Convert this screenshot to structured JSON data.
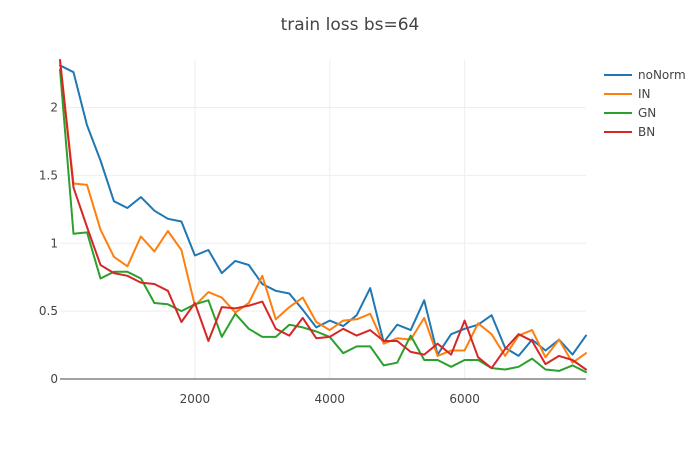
{
  "chart_data": {
    "type": "line",
    "title": "train loss bs=64",
    "xlabel": "",
    "ylabel": "",
    "xlim": [
      0,
      7800
    ],
    "ylim": [
      0,
      2.35
    ],
    "xticks": [
      2000,
      4000,
      6000
    ],
    "yticks": [
      0,
      0.5,
      1,
      1.5,
      2
    ],
    "xtick_labels": [
      "2000",
      "4000",
      "6000"
    ],
    "ytick_labels": [
      "0",
      "0.5",
      "1",
      "1.5",
      "2"
    ],
    "grid": true,
    "legend_position": "top-right",
    "x": [
      0,
      200,
      400,
      600,
      800,
      1000,
      1200,
      1400,
      1600,
      1800,
      2000,
      2200,
      2400,
      2600,
      2800,
      3000,
      3200,
      3400,
      3600,
      3800,
      4000,
      4200,
      4400,
      4600,
      4800,
      5000,
      5200,
      5400,
      5600,
      5800,
      6000,
      6200,
      6400,
      6600,
      6800,
      7000,
      7200,
      7400,
      7600,
      7800
    ],
    "series": [
      {
        "name": "noNorm",
        "color": "#1f77b4",
        "values": [
          2.31,
          2.26,
          1.87,
          1.61,
          1.31,
          1.26,
          1.34,
          1.24,
          1.18,
          1.16,
          0.91,
          0.95,
          0.78,
          0.87,
          0.84,
          0.7,
          0.65,
          0.63,
          0.51,
          0.38,
          0.43,
          0.39,
          0.47,
          0.67,
          0.27,
          0.4,
          0.36,
          0.58,
          0.18,
          0.33,
          0.37,
          0.4,
          0.47,
          0.23,
          0.17,
          0.29,
          0.21,
          0.29,
          0.18,
          0.32
        ]
      },
      {
        "name": "IN",
        "color": "#ff7f0e",
        "values": [
          2.35,
          1.44,
          1.43,
          1.1,
          0.9,
          0.83,
          1.05,
          0.94,
          1.09,
          0.95,
          0.54,
          0.64,
          0.6,
          0.49,
          0.56,
          0.76,
          0.44,
          0.53,
          0.6,
          0.42,
          0.36,
          0.43,
          0.44,
          0.48,
          0.26,
          0.3,
          0.29,
          0.45,
          0.17,
          0.21,
          0.21,
          0.41,
          0.33,
          0.17,
          0.32,
          0.36,
          0.16,
          0.29,
          0.12,
          0.19
        ]
      },
      {
        "name": "GN",
        "color": "#2ca02c",
        "values": [
          2.28,
          1.07,
          1.08,
          0.74,
          0.79,
          0.79,
          0.74,
          0.56,
          0.55,
          0.5,
          0.55,
          0.58,
          0.31,
          0.48,
          0.37,
          0.31,
          0.31,
          0.4,
          0.38,
          0.35,
          0.31,
          0.19,
          0.24,
          0.24,
          0.1,
          0.12,
          0.32,
          0.14,
          0.14,
          0.09,
          0.14,
          0.14,
          0.08,
          0.07,
          0.09,
          0.15,
          0.07,
          0.06,
          0.1,
          0.05
        ]
      },
      {
        "name": "BN",
        "color": "#d62728",
        "values": [
          2.35,
          1.41,
          1.12,
          0.84,
          0.78,
          0.76,
          0.71,
          0.7,
          0.65,
          0.42,
          0.56,
          0.28,
          0.53,
          0.52,
          0.54,
          0.57,
          0.37,
          0.32,
          0.45,
          0.3,
          0.31,
          0.37,
          0.32,
          0.36,
          0.28,
          0.28,
          0.2,
          0.18,
          0.26,
          0.18,
          0.43,
          0.16,
          0.08,
          0.22,
          0.33,
          0.28,
          0.11,
          0.17,
          0.14,
          0.07
        ]
      }
    ]
  }
}
